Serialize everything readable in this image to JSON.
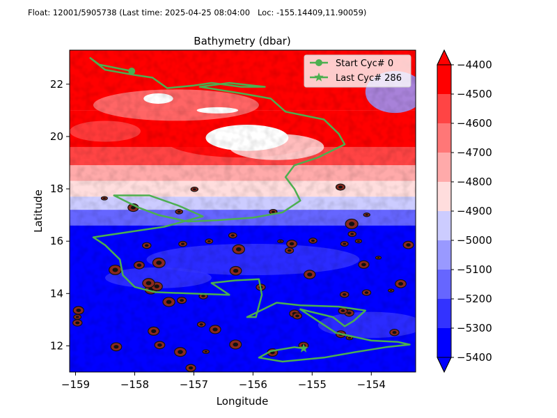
{
  "header": {
    "float_text": "Float: 12001/5905738 (Last time: 2025-04-25 08:04:00   Loc: -155.14409,11.90059)"
  },
  "chart_data": {
    "type": "contour-map",
    "title": "Bathymetry (dbar)",
    "xlabel": "Longitude",
    "ylabel": "Latitude",
    "xlim": [
      -159.1,
      -153.25
    ],
    "ylim": [
      11.0,
      23.3
    ],
    "xticks": [
      -159,
      -158,
      -157,
      -156,
      -155,
      -154
    ],
    "xtick_labels": [
      "−159",
      "−158",
      "−157",
      "−156",
      "−155",
      "−154"
    ],
    "yticks": [
      12,
      14,
      16,
      18,
      20,
      22
    ],
    "ytick_labels": [
      "12",
      "14",
      "16",
      "18",
      "20",
      "22"
    ],
    "colorbar": {
      "levels": [
        -5400,
        -5300,
        -5200,
        -5100,
        -5000,
        -4900,
        -4800,
        -4700,
        -4600,
        -4500,
        -4400
      ],
      "labels": [
        "−5400",
        "−5300",
        "−5200",
        "−5100",
        "−5000",
        "−4900",
        "−4800",
        "−4700",
        "−4600",
        "−4500",
        "−4400"
      ],
      "colors": [
        "#0000ff",
        "#3333ff",
        "#6666ff",
        "#9999ff",
        "#ccccff",
        "#ffdddd",
        "#ffaaaa",
        "#ff7777",
        "#ff4444",
        "#ff0000"
      ],
      "extend": "both"
    },
    "legend": {
      "placement": "top-right",
      "entries": [
        {
          "label": "Start Cyc# 0",
          "marker": "circle"
        },
        {
          "label": "Last Cyc# 286",
          "marker": "star"
        }
      ]
    },
    "track_color": "#4caf50",
    "track": [
      [
        -158.05,
        22.5
      ],
      [
        -158.6,
        22.75
      ],
      [
        -158.75,
        23.0
      ],
      [
        -158.5,
        22.55
      ],
      [
        -158.0,
        22.35
      ],
      [
        -157.7,
        22.25
      ],
      [
        -157.45,
        21.85
      ],
      [
        -157.0,
        21.95
      ],
      [
        -156.7,
        22.05
      ],
      [
        -156.2,
        21.9
      ],
      [
        -155.8,
        21.9
      ],
      [
        -156.4,
        22.05
      ],
      [
        -156.9,
        21.9
      ],
      [
        -156.2,
        21.65
      ],
      [
        -155.7,
        21.45
      ],
      [
        -155.45,
        20.95
      ],
      [
        -154.8,
        20.65
      ],
      [
        -154.55,
        20.1
      ],
      [
        -154.45,
        19.7
      ],
      [
        -154.9,
        19.2
      ],
      [
        -155.3,
        18.9
      ],
      [
        -155.45,
        18.45
      ],
      [
        -155.3,
        18.0
      ],
      [
        -155.2,
        17.55
      ],
      [
        -155.5,
        17.1
      ],
      [
        -156.0,
        16.9
      ],
      [
        -156.6,
        16.8
      ],
      [
        -157.1,
        16.75
      ],
      [
        -157.6,
        17.0
      ],
      [
        -157.95,
        17.3
      ],
      [
        -158.35,
        17.75
      ],
      [
        -157.75,
        17.75
      ],
      [
        -157.25,
        17.35
      ],
      [
        -156.85,
        16.95
      ],
      [
        -157.5,
        16.55
      ],
      [
        -158.1,
        16.35
      ],
      [
        -158.7,
        16.15
      ],
      [
        -158.5,
        15.85
      ],
      [
        -158.25,
        15.3
      ],
      [
        -158.2,
        14.7
      ],
      [
        -158.0,
        14.25
      ],
      [
        -157.65,
        14.05
      ],
      [
        -157.05,
        14.0
      ],
      [
        -156.4,
        13.95
      ],
      [
        -156.7,
        14.4
      ],
      [
        -156.3,
        14.5
      ],
      [
        -155.9,
        14.55
      ],
      [
        -155.85,
        13.95
      ],
      [
        -155.95,
        13.1
      ],
      [
        -156.1,
        13.1
      ],
      [
        -155.6,
        13.65
      ],
      [
        -155.2,
        13.55
      ],
      [
        -154.55,
        13.5
      ],
      [
        -154.1,
        13.35
      ],
      [
        -154.3,
        12.95
      ],
      [
        -154.45,
        12.75
      ],
      [
        -154.65,
        13.1
      ],
      [
        -155.2,
        13.4
      ],
      [
        -154.9,
        12.95
      ],
      [
        -154.6,
        12.5
      ],
      [
        -154.0,
        12.2
      ],
      [
        -153.55,
        12.15
      ],
      [
        -153.35,
        12.05
      ],
      [
        -153.75,
        11.95
      ],
      [
        -154.3,
        11.75
      ],
      [
        -154.8,
        11.55
      ],
      [
        -155.5,
        11.4
      ],
      [
        -155.9,
        11.55
      ],
      [
        -155.7,
        11.8
      ],
      [
        -155.3,
        11.95
      ],
      [
        -155.14409,
        11.90059
      ]
    ],
    "start": [
      -158.05,
      22.5
    ],
    "last": [
      -155.14409,
      11.90059
    ]
  }
}
